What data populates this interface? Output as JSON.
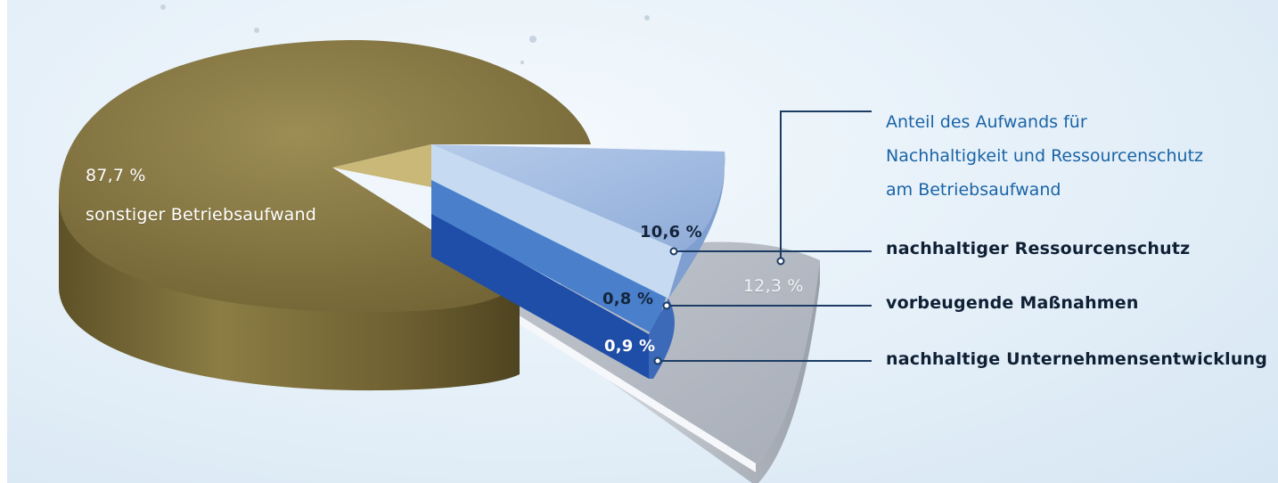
{
  "chart_data": {
    "type": "pie",
    "title_lines": [
      "Anteil des Aufwands für",
      "Nachhaltigkeit und Ressourcenschutz",
      "am Betriebsaufwand"
    ],
    "slices": [
      {
        "label": "sonstiger Betriebsaufwand",
        "value": 87.7,
        "value_label": "87,7 %",
        "color": "#8c7d45"
      },
      {
        "label": "Anteil des Aufwands für Nachhaltigkeit und Ressourcenschutz am Betriebsaufwand",
        "value": 12.3,
        "value_label": "12,3 %",
        "color": "#c9cdd4"
      }
    ],
    "breakdown": [
      {
        "label": "nachhaltiger Ressourcenschutz",
        "value": 10.6,
        "value_label": "10,6 %",
        "color": "#a9c3e6"
      },
      {
        "label": "vorbeugende Maßnahmen",
        "value": 0.8,
        "value_label": "0,8 %",
        "color": "#4a7fcc"
      },
      {
        "label": "nachhaltige Unternehmensentwicklung",
        "value": 0.9,
        "value_label": "0,9 %",
        "color": "#1f4ea8"
      }
    ]
  }
}
